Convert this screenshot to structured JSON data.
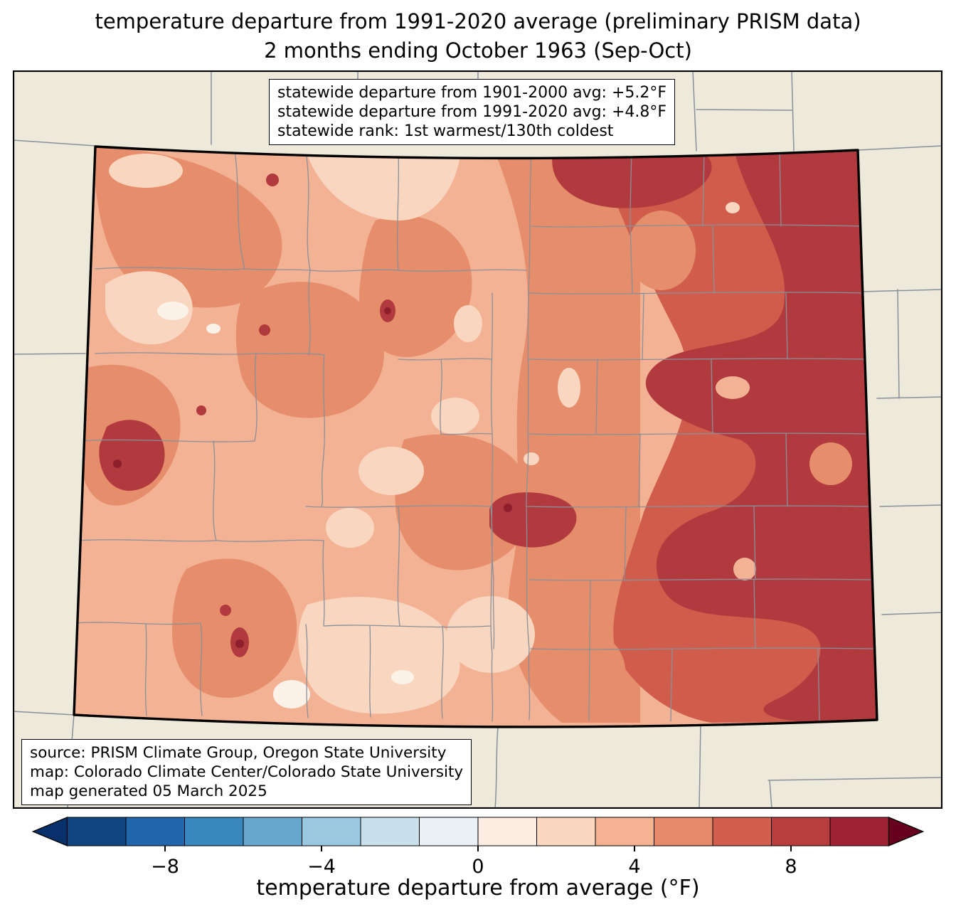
{
  "title": {
    "line1": "temperature departure from 1991-2020 average (preliminary PRISM data)",
    "line2": "2 months ending October 1963 (Sep-Oct)"
  },
  "stats_box": {
    "lines": [
      "statewide departure from 1901-2000 avg: +5.2°F",
      "statewide departure from 1991-2020 avg: +4.8°F",
      "statewide rank: 1st warmest/130th coldest"
    ]
  },
  "source_box": {
    "lines": [
      "source: PRISM Climate Group, Oregon State University",
      "map: Colorado Climate Center/Colorado State University",
      "map generated 05 March 2025"
    ]
  },
  "colorbar": {
    "label": "temperature departure from average (°F)",
    "unit": "°F",
    "value_range": [
      -10.5,
      10.5
    ],
    "interval": 1.5,
    "ticks": [
      {
        "value": -8,
        "label": "−8"
      },
      {
        "value": -4,
        "label": "−4"
      },
      {
        "value": 0,
        "label": "0"
      },
      {
        "value": 4,
        "label": "4"
      },
      {
        "value": 8,
        "label": "8"
      }
    ],
    "segments": [
      "#10457f",
      "#2166ac",
      "#3a87bd",
      "#68a8cf",
      "#9ac8e0",
      "#c8dfec",
      "#eaf1f5",
      "#fcece1",
      "#fbd7c0",
      "#f5b293",
      "#e78a6c",
      "#d25f4d",
      "#b93d3d",
      "#9f2133"
    ],
    "arrow_left_color": "#08306b",
    "arrow_right_color": "#67001f",
    "tick_color": "#000000"
  },
  "map": {
    "region": "Colorado",
    "background_color": "#edeadb",
    "border_color": "#000000",
    "county_line_color": "#8a9099",
    "palette": {
      "pbg": "#edeadb",
      "p1": "#fdf2e7",
      "p2": "#f9d6bf",
      "p3": "#f4b295",
      "p4": "#e68e6b",
      "p5": "#d05c4b",
      "p6": "#b13a3e",
      "p7": "#8f1e2d"
    }
  }
}
